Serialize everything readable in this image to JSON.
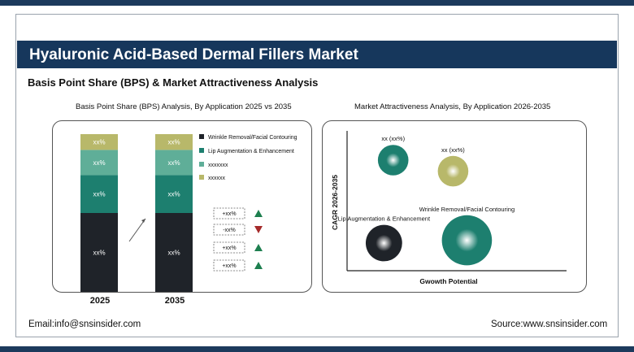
{
  "header": {
    "title": "Hyaluronic Acid-Based Dermal Fillers Market",
    "subtitle": "Basis Point Share (BPS) & Market Attractiveness Analysis"
  },
  "footer": {
    "email": "Email:info@snsinsider.com",
    "source": "Source:www.snsinsider.com"
  },
  "colors": {
    "navy": "#16375c",
    "dark": "#1f2329",
    "teal": "#1d7f6f",
    "light_teal": "#5fae98",
    "olive": "#b8b86a"
  },
  "chart_data": [
    {
      "type": "bar",
      "title": "Basis Point Share (BPS) Analysis, By Application 2025 vs 2035",
      "categories": [
        "2025",
        "2035"
      ],
      "legend": [
        "Wrinkle Removal/Facial Contouring",
        "Lip Augmentation & Enhancement",
        "xxxxxxx",
        "xxxxxx"
      ],
      "series": [
        {
          "name": "Wrinkle Removal/Facial Contouring",
          "values": [
            50,
            50
          ],
          "label": "xx%",
          "color": "#1f2329"
        },
        {
          "name": "Lip Augmentation & Enhancement",
          "values": [
            24,
            24
          ],
          "label": "xx%",
          "color": "#1d7f6f"
        },
        {
          "name": "xxxxxxx",
          "values": [
            16,
            16
          ],
          "label": "xx%",
          "color": "#5fae98"
        },
        {
          "name": "xxxxxx",
          "values": [
            10,
            10
          ],
          "label": "xx%",
          "color": "#b8b86a"
        }
      ],
      "changes": [
        {
          "label": "+xx%",
          "direction": "up"
        },
        {
          "label": "-xx%",
          "direction": "down"
        },
        {
          "label": "+xx%",
          "direction": "up"
        },
        {
          "label": "+xx%",
          "direction": "up"
        }
      ]
    },
    {
      "type": "scatter",
      "title": "Market Attractiveness Analysis, By Application 2026-2035",
      "xlabel": "Gwowth Potential",
      "ylabel": "CAGR 2026-2035",
      "points": [
        {
          "label": "xx (xx%)",
          "x": 0.2,
          "y": 0.8,
          "size": 0.45,
          "color": "#1d7f6f"
        },
        {
          "label": "xx (xx%)",
          "x": 0.46,
          "y": 0.72,
          "size": 0.45,
          "color": "#b8b86a"
        },
        {
          "label": "Lip Augmentation & Enhancement",
          "x": 0.16,
          "y": 0.2,
          "size": 0.6,
          "color": "#1f2329"
        },
        {
          "label": "Wrinkle Removal/Facial Contouring",
          "x": 0.52,
          "y": 0.22,
          "size": 0.95,
          "color": "#1d7f6f"
        }
      ]
    }
  ]
}
